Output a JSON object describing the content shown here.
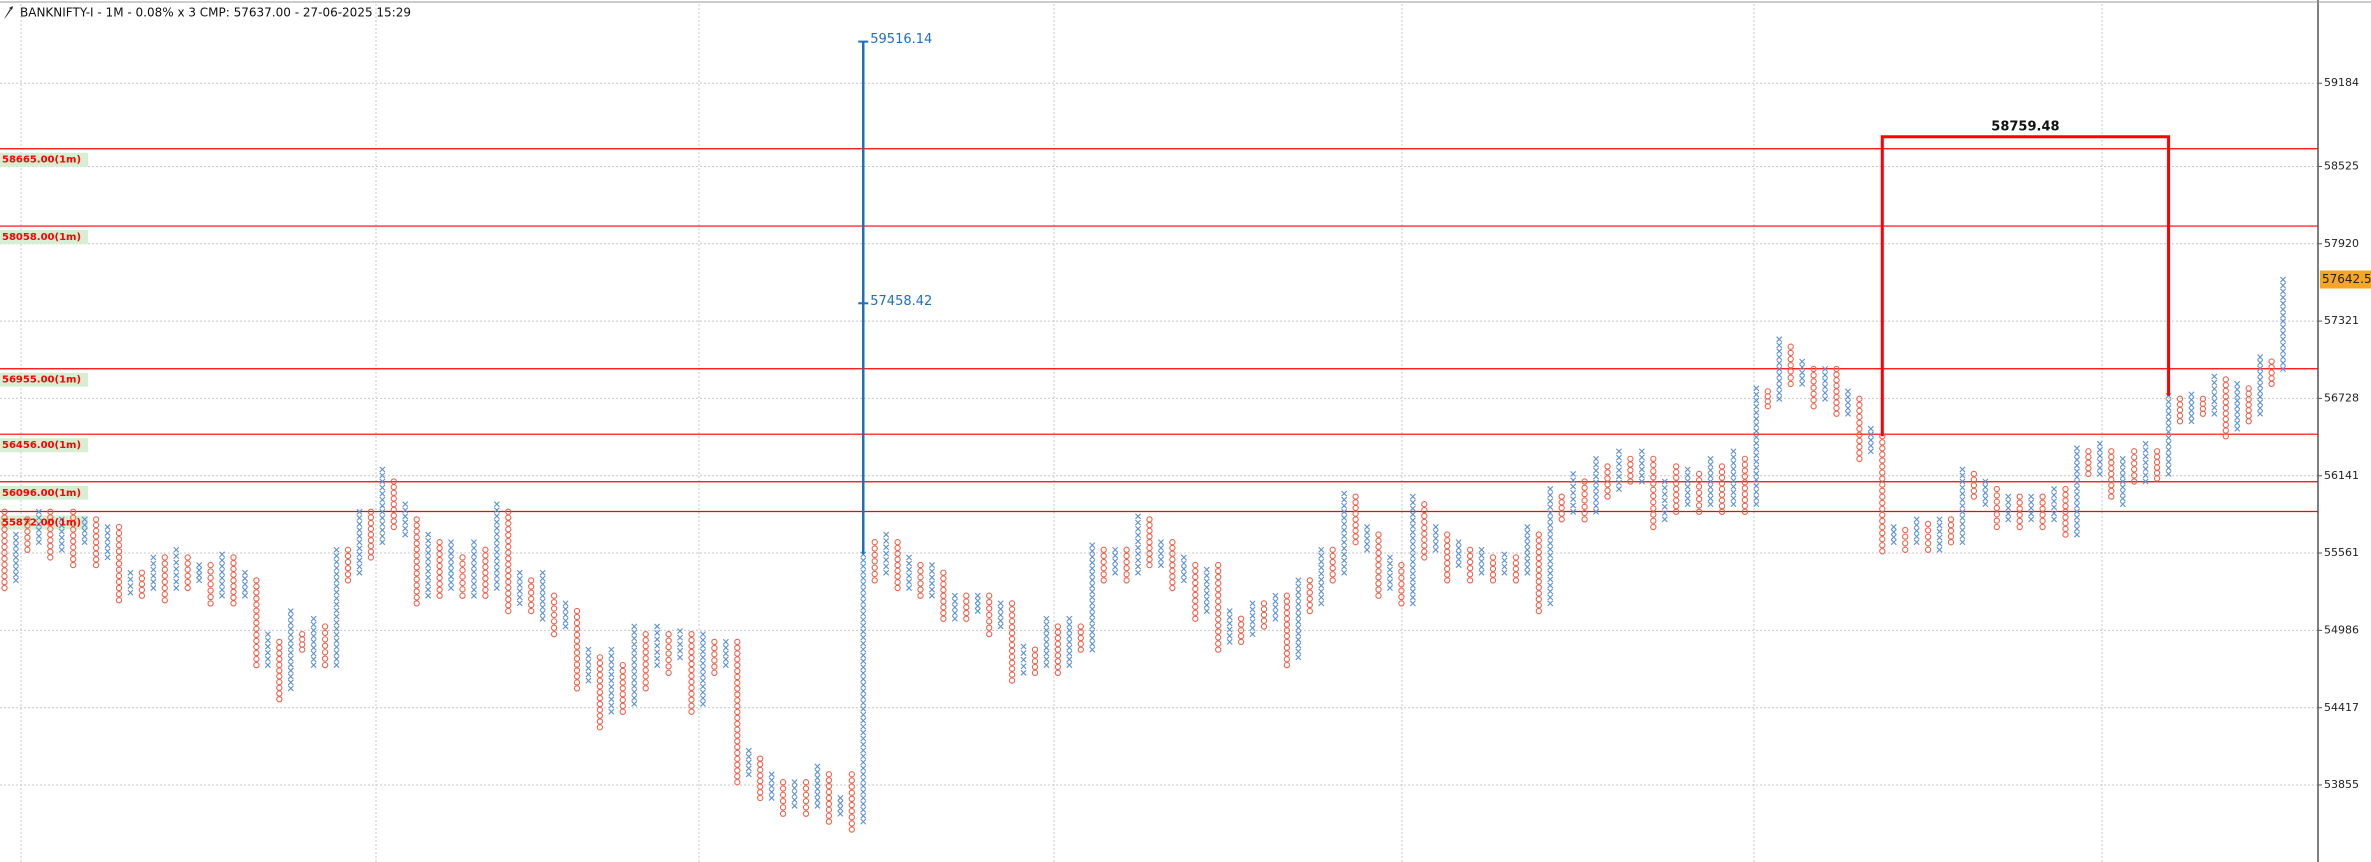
{
  "chart_data": {
    "type": "point-and-figure",
    "title": "BANKNIFTY-I - 1M - 0.08% x 3 CMP: 57637.00 - 27-06-2025 15:29",
    "first_column": "O",
    "x_color": "#5b8fd6",
    "o_color": "#f0604a",
    "log_scale": true,
    "grid": true,
    "ylim": [
      53300,
      59850
    ],
    "yticks": [
      59184,
      58525,
      57920,
      57321,
      56728,
      56141,
      55561,
      54986,
      54417,
      53855
    ],
    "levels": [
      {
        "value": 58665,
        "label": "58665.00(1m)"
      },
      {
        "value": 58058,
        "label": "58058.00(1m)"
      },
      {
        "value": 56955,
        "label": "56955.00(1m)"
      },
      {
        "value": 56456,
        "label": "56456.00(1m)"
      },
      {
        "value": 56096,
        "label": "56096.00(1m)"
      },
      {
        "value": 55872,
        "label": "55872.00(1m)"
      }
    ],
    "level_color": "#ff0000",
    "measure": {
      "top": 59516.14,
      "mid": 57458.42,
      "color": "#1f6fbf"
    },
    "bracket": {
      "top": 58759.48,
      "color": "#ff0000"
    },
    "cmp_tag": 57642.51,
    "columns": [
      [
        55300,
        55870
      ],
      [
        55357,
        55699
      ],
      [
        55585,
        55813
      ],
      [
        55642,
        55870
      ],
      [
        55528,
        55870
      ],
      [
        55585,
        55813
      ],
      [
        55471,
        55870
      ],
      [
        55642,
        55813
      ],
      [
        55471,
        55813
      ],
      [
        55528,
        55756
      ],
      [
        55209,
        55756
      ],
      [
        55266,
        55414
      ],
      [
        55243,
        55414
      ],
      [
        55300,
        55528
      ],
      [
        55209,
        55528
      ],
      [
        55300,
        55585
      ],
      [
        55300,
        55528
      ],
      [
        55357,
        55471
      ],
      [
        55186,
        55471
      ],
      [
        55243,
        55551
      ],
      [
        55186,
        55528
      ],
      [
        55243,
        55414
      ],
      [
        54730,
        55357
      ],
      [
        54730,
        54958
      ],
      [
        54479,
        54901
      ],
      [
        54559,
        55129
      ],
      [
        54844,
        54958
      ],
      [
        54730,
        55072
      ],
      [
        54730,
        55015
      ],
      [
        54730,
        55585
      ],
      [
        55357,
        55585
      ],
      [
        55414,
        55870
      ],
      [
        55528,
        55870
      ],
      [
        55642,
        56189
      ],
      [
        55756,
        56098
      ],
      [
        55699,
        55927
      ],
      [
        55186,
        55813
      ],
      [
        55243,
        55699
      ],
      [
        55243,
        55642
      ],
      [
        55300,
        55642
      ],
      [
        55243,
        55528
      ],
      [
        55243,
        55642
      ],
      [
        55243,
        55585
      ],
      [
        55300,
        55927
      ],
      [
        55129,
        55870
      ],
      [
        55186,
        55414
      ],
      [
        55129,
        55357
      ],
      [
        55072,
        55414
      ],
      [
        54958,
        55243
      ],
      [
        55015,
        55186
      ],
      [
        54559,
        55129
      ],
      [
        54616,
        54844
      ],
      [
        54274,
        54787
      ],
      [
        54388,
        54844
      ],
      [
        54388,
        54730
      ],
      [
        54445,
        55015
      ],
      [
        54559,
        54958
      ],
      [
        54730,
        55015
      ],
      [
        54673,
        54958
      ],
      [
        54787,
        54981
      ],
      [
        54388,
        54958
      ],
      [
        54445,
        54958
      ],
      [
        54673,
        54901
      ],
      [
        54730,
        54901
      ],
      [
        53875,
        54901
      ],
      [
        53932,
        54103
      ],
      [
        53761,
        54046
      ],
      [
        53761,
        53932
      ],
      [
        53647,
        53875
      ],
      [
        53704,
        53875
      ],
      [
        53647,
        53875
      ],
      [
        53704,
        53989
      ],
      [
        53590,
        53932
      ],
      [
        53647,
        53761
      ],
      [
        53533,
        53932
      ],
      [
        53590,
        55551
      ],
      [
        55357,
        55642
      ],
      [
        55414,
        55699
      ],
      [
        55300,
        55642
      ],
      [
        55300,
        55528
      ],
      [
        55243,
        55471
      ],
      [
        55243,
        55471
      ],
      [
        55072,
        55414
      ],
      [
        55072,
        55243
      ],
      [
        55072,
        55243
      ],
      [
        55129,
        55243
      ],
      [
        54958,
        55243
      ],
      [
        55015,
        55186
      ],
      [
        54616,
        55186
      ],
      [
        54673,
        54867
      ],
      [
        54673,
        54844
      ],
      [
        54730,
        55072
      ],
      [
        54673,
        55015
      ],
      [
        54730,
        55072
      ],
      [
        54844,
        55015
      ],
      [
        54844,
        55619
      ],
      [
        55357,
        55585
      ],
      [
        55414,
        55585
      ],
      [
        55357,
        55585
      ],
      [
        55414,
        55836
      ],
      [
        55471,
        55813
      ],
      [
        55471,
        55642
      ],
      [
        55300,
        55642
      ],
      [
        55357,
        55528
      ],
      [
        55072,
        55471
      ],
      [
        55129,
        55437
      ],
      [
        54844,
        55471
      ],
      [
        54901,
        55129
      ],
      [
        54901,
        55072
      ],
      [
        54958,
        55186
      ],
      [
        55015,
        55186
      ],
      [
        55072,
        55243
      ],
      [
        54730,
        55243
      ],
      [
        54787,
        55357
      ],
      [
        55129,
        55357
      ],
      [
        55186,
        55585
      ],
      [
        55357,
        55585
      ],
      [
        55414,
        56007
      ],
      [
        55642,
        55984
      ],
      [
        55585,
        55756
      ],
      [
        55243,
        55699
      ],
      [
        55300,
        55528
      ],
      [
        55186,
        55471
      ],
      [
        55186,
        55984
      ],
      [
        55528,
        55927
      ],
      [
        55585,
        55756
      ],
      [
        55357,
        55699
      ],
      [
        55471,
        55642
      ],
      [
        55357,
        55585
      ],
      [
        55414,
        55585
      ],
      [
        55357,
        55528
      ],
      [
        55414,
        55551
      ],
      [
        55357,
        55528
      ],
      [
        55414,
        55756
      ],
      [
        55129,
        55699
      ],
      [
        55186,
        56041
      ],
      [
        55813,
        55984
      ],
      [
        55870,
        56155
      ],
      [
        55813,
        56098
      ],
      [
        55870,
        56269
      ],
      [
        55984,
        56212
      ],
      [
        56041,
        56326
      ],
      [
        56098,
        56269
      ],
      [
        56098,
        56326
      ],
      [
        55756,
        56269
      ],
      [
        55813,
        56098
      ],
      [
        55870,
        56212
      ],
      [
        55927,
        56189
      ],
      [
        55870,
        56155
      ],
      [
        55927,
        56269
      ],
      [
        55870,
        56212
      ],
      [
        55927,
        56326
      ],
      [
        55870,
        56269
      ],
      [
        55927,
        56805
      ],
      [
        56668,
        56782
      ],
      [
        56725,
        57181
      ],
      [
        56839,
        57124
      ],
      [
        56839,
        57010
      ],
      [
        56668,
        56953
      ],
      [
        56725,
        56953
      ],
      [
        56611,
        56953
      ],
      [
        56611,
        56782
      ],
      [
        56269,
        56725
      ],
      [
        56326,
        56497
      ],
      [
        55574,
        56440
      ],
      [
        55642,
        55756
      ],
      [
        55585,
        55733
      ],
      [
        55642,
        55813
      ],
      [
        55585,
        55779
      ],
      [
        55585,
        55813
      ],
      [
        55642,
        55813
      ],
      [
        55642,
        56189
      ],
      [
        55984,
        56155
      ],
      [
        55927,
        56098
      ],
      [
        55756,
        56041
      ],
      [
        55813,
        55984
      ],
      [
        55756,
        55984
      ],
      [
        55813,
        55984
      ],
      [
        55756,
        55984
      ],
      [
        55813,
        56041
      ],
      [
        55699,
        56041
      ],
      [
        55699,
        56349
      ],
      [
        56155,
        56326
      ],
      [
        56155,
        56383
      ],
      [
        55984,
        56326
      ],
      [
        55927,
        56269
      ],
      [
        56098,
        56326
      ],
      [
        56098,
        56383
      ],
      [
        56121,
        56326
      ],
      [
        56155,
        56748
      ],
      [
        56554,
        56725
      ],
      [
        56554,
        56759
      ],
      [
        56611,
        56725
      ],
      [
        56611,
        56896
      ],
      [
        56440,
        56873
      ],
      [
        56497,
        56839
      ],
      [
        56554,
        56805
      ],
      [
        56611,
        57044
      ],
      [
        56839,
        57010
      ],
      [
        56953,
        57642
      ]
    ]
  }
}
